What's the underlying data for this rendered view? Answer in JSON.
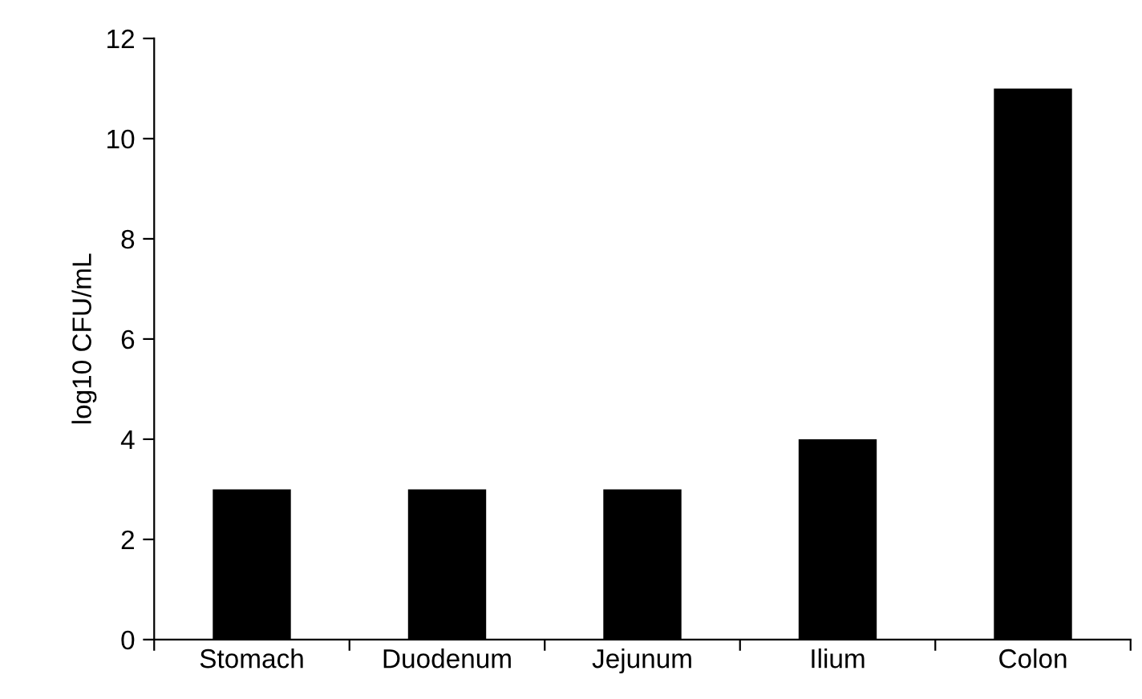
{
  "chart_data": {
    "type": "bar",
    "ylabel": "log10 CFU/mL",
    "categories": [
      "Stomach",
      "Duodenum",
      "Jejunum",
      "Ilium",
      "Colon"
    ],
    "values": [
      3,
      3,
      3,
      4,
      11
    ],
    "color": "#000000",
    "ylim": [
      0,
      12
    ],
    "yticks": [
      0,
      2,
      4,
      6,
      8,
      10,
      12
    ],
    "grid": false
  }
}
